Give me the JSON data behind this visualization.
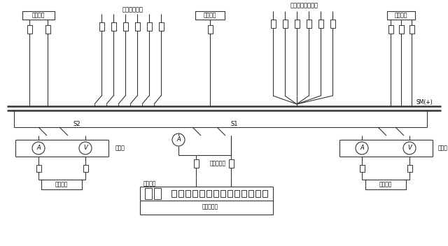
{
  "bg_color": "#ffffff",
  "lc": "#333333",
  "tc": "#000000",
  "labels": {
    "dianYaJianCha": "电压监察",
    "dongLiZhiLiu": "动力直流馈线",
    "jueyuanJianCha": "绝缘监察",
    "caozuoXinhao": "操作信号直流馈线",
    "shanGuangZhuangZhi": "闪光装置",
    "SM": "SM(+)",
    "S2": "S2",
    "S1": "S1",
    "zhuChongDian": "主充电",
    "fuChongDian": "浮充电",
    "guiZhengLiuQi1": "硅整流器",
    "guiZhengLiuQi2": "硅整流器",
    "dianChiZu": "蓄电池组",
    "faDianFenJieTou": "放电分接头",
    "chongDianFenJieTou": "充电分接头"
  }
}
